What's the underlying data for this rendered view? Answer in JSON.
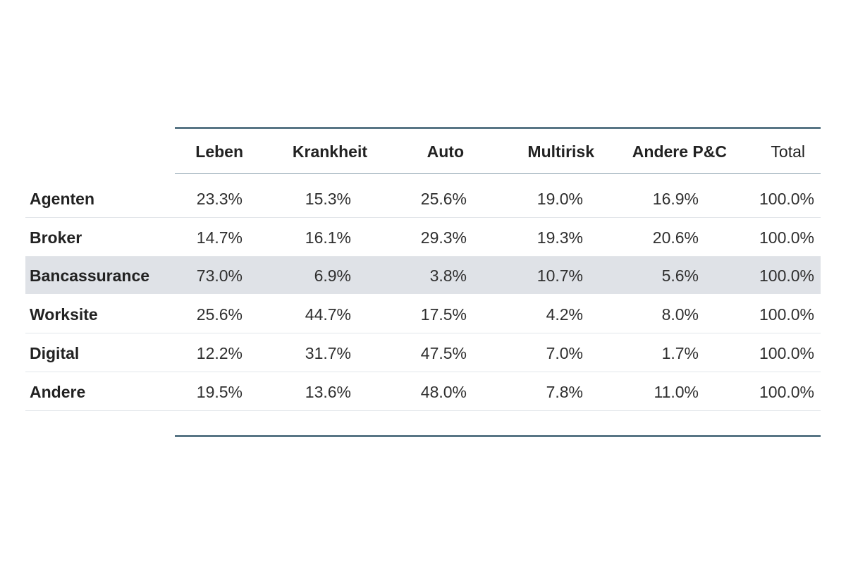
{
  "chart_data": {
    "type": "table",
    "columns": [
      "Leben",
      "Krankheit",
      "Auto",
      "Multirisk",
      "Andere P&C",
      "Total"
    ],
    "rows": [
      {
        "label": "Agenten",
        "values": [
          "23.3%",
          "15.3%",
          "25.6%",
          "19.0%",
          "16.9%",
          "100.0%"
        ],
        "highlight": false
      },
      {
        "label": "Broker",
        "values": [
          "14.7%",
          "16.1%",
          "29.3%",
          "19.3%",
          "20.6%",
          "100.0%"
        ],
        "highlight": false
      },
      {
        "label": "Bancassurance",
        "values": [
          "73.0%",
          "6.9%",
          "3.8%",
          "10.7%",
          "5.6%",
          "100.0%"
        ],
        "highlight": true
      },
      {
        "label": "Worksite",
        "values": [
          "25.6%",
          "44.7%",
          "17.5%",
          "4.2%",
          "8.0%",
          "100.0%"
        ],
        "highlight": false
      },
      {
        "label": "Digital",
        "values": [
          "12.2%",
          "31.7%",
          "47.5%",
          "7.0%",
          "1.7%",
          "100.0%"
        ],
        "highlight": false
      },
      {
        "label": "Andere",
        "values": [
          "19.5%",
          "13.6%",
          "48.0%",
          "7.8%",
          "11.0%",
          "100.0%"
        ],
        "highlight": false
      }
    ]
  },
  "colors": {
    "rule": "#587585",
    "highlight_row": "#dfe2e7"
  }
}
